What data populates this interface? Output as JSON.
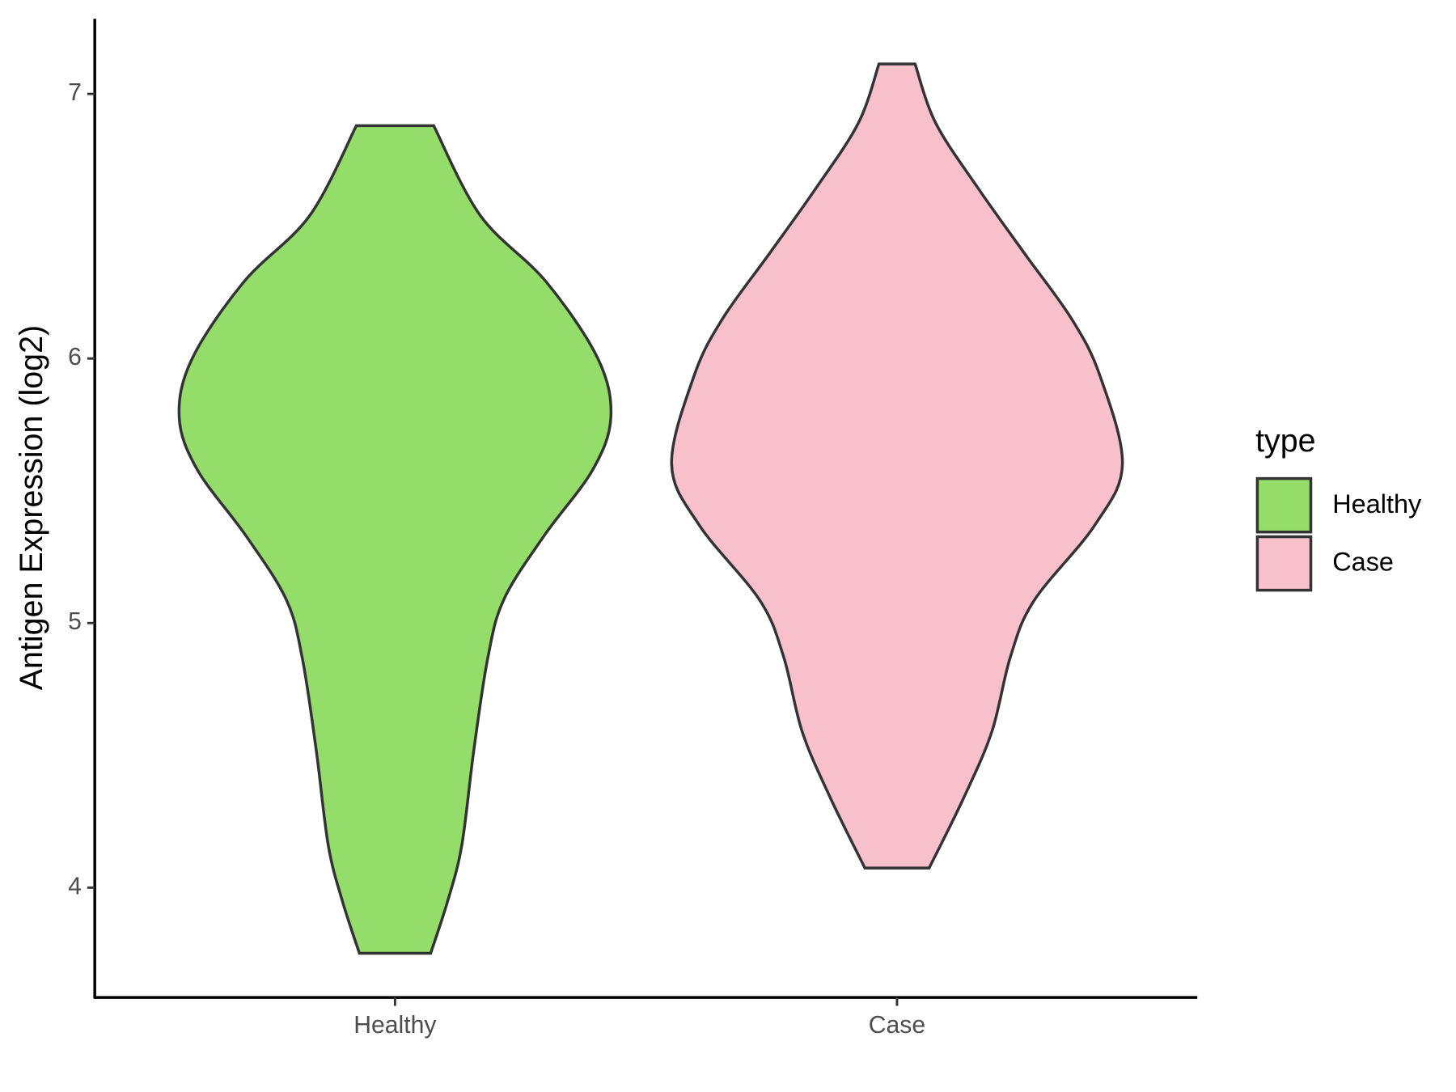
{
  "chart_data": {
    "type": "violin",
    "y_label": "Antigen Expression (log2)",
    "categories": [
      "Healthy",
      "Case"
    ],
    "series": [
      {
        "name": "Healthy",
        "color": "#95dd6b",
        "y": [
          3.752,
          3.95,
          4.16,
          4.52,
          4.87,
          5.09,
          5.33,
          5.58,
          5.78,
          6.0,
          6.29,
          6.54,
          6.88
        ],
        "width": [
          0.071,
          0.105,
          0.133,
          0.157,
          0.185,
          0.217,
          0.297,
          0.394,
          0.43,
          0.404,
          0.301,
          0.17,
          0.077
        ]
      },
      {
        "name": "Case",
        "color": "#f7c0cb",
        "y": [
          4.074,
          4.34,
          4.59,
          4.873,
          5.085,
          5.37,
          5.6,
          5.936,
          6.149,
          6.397,
          6.645,
          6.89,
          7.113
        ],
        "width": [
          0.064,
          0.133,
          0.189,
          0.226,
          0.273,
          0.394,
          0.449,
          0.404,
          0.348,
          0.254,
          0.161,
          0.077,
          0.036
        ]
      }
    ],
    "ylim": [
      3.585,
      7.284
    ],
    "yticks": [
      4,
      5,
      6,
      7
    ],
    "legend_title": "type",
    "legend": "right"
  }
}
